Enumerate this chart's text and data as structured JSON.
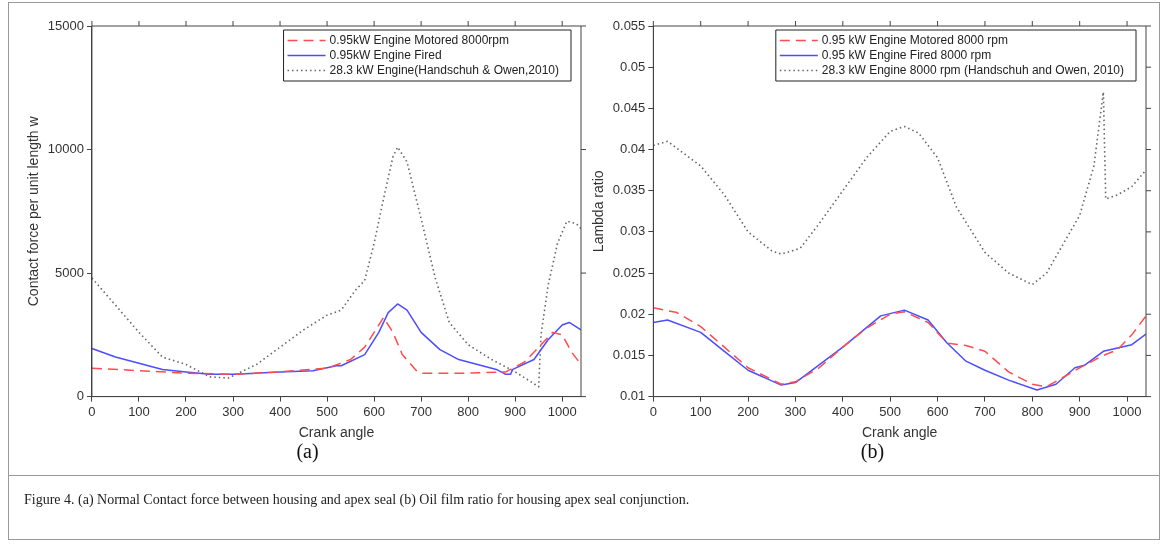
{
  "chart_data": [
    {
      "type": "line",
      "xlabel": "Crank angle",
      "ylabel": "Contact force per unit length w",
      "xlim": [
        0,
        1040
      ],
      "xticks": [
        0,
        100,
        200,
        300,
        400,
        500,
        600,
        700,
        800,
        900,
        1000
      ],
      "ylim": [
        0,
        15000
      ],
      "yticks": [
        0,
        5000,
        10000,
        15000
      ],
      "legend": "top right",
      "marker": "none",
      "annotations": [
        "(a)",
        "Figure 4. (a) Normal Contact force between housing and apex seal (b) Oil film ratio for housing apex seal conjunction."
      ],
      "series": [
        {
          "name": "0.95kW Engine Motored 8000rpm",
          "color": "#ff4d4d",
          "line_style": "dashed",
          "x": [
            0,
            100,
            200,
            300,
            400,
            500,
            550,
            580,
            620,
            640,
            660,
            690,
            700,
            800,
            880,
            920,
            960,
            980,
            1000,
            1020,
            1040
          ],
          "values": [
            1150,
            1050,
            950,
            900,
            1000,
            1150,
            1500,
            2000,
            3200,
            2600,
            1700,
            1050,
            950,
            950,
            1000,
            1400,
            2200,
            2600,
            2500,
            1800,
            1300
          ]
        },
        {
          "name": "0.95kW Engine Fired",
          "color": "#4d4dff",
          "line_style": "solid",
          "x": [
            0,
            50,
            100,
            150,
            200,
            250,
            300,
            400,
            470,
            520,
            530,
            580,
            610,
            630,
            650,
            670,
            700,
            740,
            780,
            820,
            860,
            880,
            890,
            895,
            940,
            970,
            1000,
            1015,
            1040
          ],
          "values": [
            1950,
            1600,
            1350,
            1100,
            1000,
            900,
            900,
            1000,
            1050,
            1250,
            1250,
            1700,
            2600,
            3400,
            3750,
            3500,
            2600,
            1900,
            1500,
            1300,
            1100,
            900,
            900,
            1100,
            1500,
            2300,
            2900,
            3000,
            2700
          ]
        },
        {
          "name": "28.3 kW Engine(Handschuh & Owen,2010)",
          "color": "#666666",
          "line_style": "dotted",
          "x": [
            0,
            50,
            100,
            150,
            200,
            250,
            290,
            350,
            400,
            450,
            500,
            530,
            560,
            580,
            600,
            620,
            640,
            650,
            670,
            700,
            730,
            760,
            800,
            850,
            900,
            950,
            955,
            970,
            990,
            1010,
            1030,
            1040
          ],
          "values": [
            4800,
            3700,
            2600,
            1600,
            1300,
            800,
            750,
            1300,
            2000,
            2700,
            3300,
            3500,
            4300,
            4700,
            6200,
            8000,
            9700,
            10100,
            9500,
            7200,
            4800,
            3000,
            2100,
            1500,
            1000,
            400,
            2500,
            4500,
            6200,
            7100,
            7000,
            6800
          ]
        }
      ]
    },
    {
      "type": "line",
      "xlabel": "Crank angle",
      "ylabel": "Lambda ratio",
      "xlim": [
        0,
        1040
      ],
      "xticks": [
        0,
        100,
        200,
        300,
        400,
        500,
        600,
        700,
        800,
        900,
        1000
      ],
      "ylim": [
        0.01,
        0.055
      ],
      "yticks": [
        0.01,
        0.015,
        0.02,
        0.025,
        0.03,
        0.035,
        0.04,
        0.045,
        0.05,
        0.055
      ],
      "legend": "top right",
      "marker": "none",
      "annotations": [
        "(b)"
      ],
      "series": [
        {
          "name": "0.95 kW Engine Motored 8000 rpm",
          "color": "#ff4d4d",
          "line_style": "dashed",
          "x": [
            0,
            50,
            100,
            150,
            200,
            270,
            300,
            350,
            400,
            450,
            500,
            530,
            580,
            620,
            660,
            700,
            750,
            800,
            830,
            870,
            900,
            950,
            980,
            1010,
            1040
          ],
          "values": [
            0.0208,
            0.0202,
            0.0185,
            0.016,
            0.0135,
            0.0115,
            0.0118,
            0.0135,
            0.016,
            0.0183,
            0.02,
            0.0203,
            0.019,
            0.0165,
            0.0162,
            0.0155,
            0.013,
            0.0115,
            0.0112,
            0.0125,
            0.0135,
            0.015,
            0.0157,
            0.0175,
            0.0198
          ]
        },
        {
          "name": "0.95 kW Engine Fired 8000 rpm",
          "color": "#4d4dff",
          "line_style": "solid",
          "x": [
            0,
            30,
            100,
            150,
            200,
            270,
            300,
            400,
            480,
            530,
            580,
            620,
            660,
            700,
            750,
            810,
            850,
            890,
            910,
            950,
            980,
            1010,
            1040
          ],
          "values": [
            0.019,
            0.0193,
            0.0178,
            0.0155,
            0.0132,
            0.0114,
            0.0117,
            0.016,
            0.0198,
            0.0205,
            0.0193,
            0.0165,
            0.0143,
            0.0132,
            0.012,
            0.0108,
            0.0115,
            0.0135,
            0.0138,
            0.0155,
            0.0159,
            0.0163,
            0.0176
          ]
        },
        {
          "name": "28.3 kW Engine 8000 rpm (Handschuh and Owen, 2010)",
          "color": "#666666",
          "line_style": "dotted",
          "x": [
            0,
            30,
            100,
            150,
            200,
            250,
            270,
            310,
            350,
            400,
            450,
            500,
            530,
            560,
            600,
            640,
            700,
            750,
            800,
            830,
            870,
            900,
            930,
            950,
            955,
            980,
            1010,
            1040
          ],
          "values": [
            0.0405,
            0.041,
            0.038,
            0.0345,
            0.03,
            0.0277,
            0.0273,
            0.028,
            0.031,
            0.035,
            0.039,
            0.0422,
            0.0428,
            0.042,
            0.039,
            0.033,
            0.0275,
            0.025,
            0.0236,
            0.025,
            0.029,
            0.032,
            0.038,
            0.047,
            0.034,
            0.0345,
            0.0355,
            0.0375
          ]
        }
      ]
    }
  ]
}
